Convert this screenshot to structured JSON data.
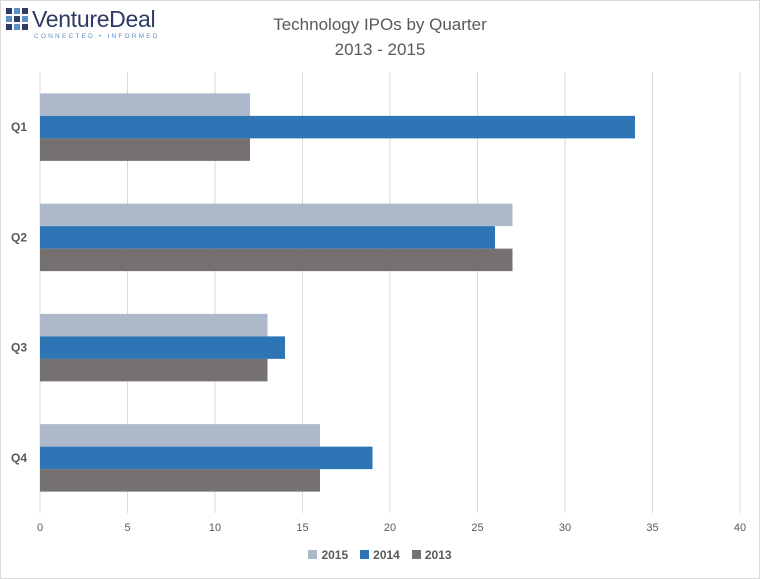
{
  "logo": {
    "name": "VentureDeal",
    "tagline": "CONNECTED • INFORMED"
  },
  "chart_data": {
    "type": "bar",
    "orientation": "horizontal",
    "title": "Technology IPOs by Quarter",
    "subtitle": "2013 - 2015",
    "categories": [
      "Q1",
      "Q2",
      "Q3",
      "Q4"
    ],
    "series": [
      {
        "name": "2015",
        "color": "#adb9ca",
        "values": [
          12,
          27,
          13,
          16
        ]
      },
      {
        "name": "2014",
        "color": "#2e75b6",
        "values": [
          34,
          26,
          14,
          19
        ]
      },
      {
        "name": "2013",
        "color": "#767171",
        "values": [
          12,
          27,
          13,
          16
        ]
      }
    ],
    "xlim": [
      0,
      40
    ],
    "xticks": [
      "0",
      "5",
      "10",
      "15",
      "20",
      "25",
      "30",
      "35",
      "40"
    ],
    "xlabel": "",
    "ylabel": "",
    "grid": true,
    "legend_position": "bottom"
  }
}
